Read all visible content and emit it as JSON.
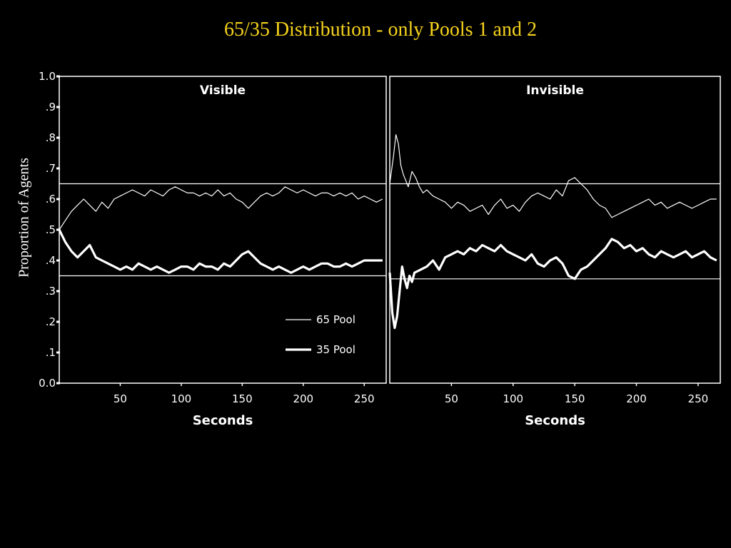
{
  "slide": {
    "title": "65/35 Distribution - only Pools 1 and 2",
    "ylabel": "Proportion of Agents"
  },
  "chart_data": [
    {
      "type": "line",
      "title": "Visible",
      "xlabel": "Seconds",
      "ylabel": "Proportion of Agents",
      "xlim": [
        0,
        268
      ],
      "ylim": [
        0,
        1
      ],
      "xticks": [
        50,
        100,
        150,
        200,
        250
      ],
      "yticks": [
        0,
        0.1,
        0.2,
        0.3,
        0.4,
        0.5,
        0.6,
        0.7,
        0.8,
        0.9,
        1.0
      ],
      "ytick_labels": [
        "0.0",
        ".1",
        ".2",
        ".3",
        ".4",
        ".5",
        ".6",
        ".7",
        ".8",
        ".9",
        "1.0"
      ],
      "reference_lines": [
        0.65,
        0.35
      ],
      "legend": {
        "placement": "lower-right",
        "entries": [
          "65 Pool",
          "35 Pool"
        ]
      },
      "series": [
        {
          "name": "65 Pool",
          "x": [
            0,
            5,
            10,
            15,
            20,
            25,
            30,
            35,
            40,
            45,
            50,
            55,
            60,
            65,
            70,
            75,
            80,
            85,
            90,
            95,
            100,
            105,
            110,
            115,
            120,
            125,
            130,
            135,
            140,
            145,
            150,
            155,
            160,
            165,
            170,
            175,
            180,
            185,
            190,
            195,
            200,
            205,
            210,
            215,
            220,
            225,
            230,
            235,
            240,
            245,
            250,
            255,
            260,
            265
          ],
          "y": [
            0.5,
            0.53,
            0.56,
            0.58,
            0.6,
            0.58,
            0.56,
            0.59,
            0.57,
            0.6,
            0.61,
            0.62,
            0.63,
            0.62,
            0.61,
            0.63,
            0.62,
            0.61,
            0.63,
            0.64,
            0.63,
            0.62,
            0.62,
            0.61,
            0.62,
            0.61,
            0.63,
            0.61,
            0.62,
            0.6,
            0.59,
            0.57,
            0.59,
            0.61,
            0.62,
            0.61,
            0.62,
            0.64,
            0.63,
            0.62,
            0.63,
            0.62,
            0.61,
            0.62,
            0.62,
            0.61,
            0.62,
            0.61,
            0.62,
            0.6,
            0.61,
            0.6,
            0.59,
            0.6
          ]
        },
        {
          "name": "35 Pool",
          "x": [
            0,
            5,
            10,
            15,
            20,
            25,
            30,
            35,
            40,
            45,
            50,
            55,
            60,
            65,
            70,
            75,
            80,
            85,
            90,
            95,
            100,
            105,
            110,
            115,
            120,
            125,
            130,
            135,
            140,
            145,
            150,
            155,
            160,
            165,
            170,
            175,
            180,
            185,
            190,
            195,
            200,
            205,
            210,
            215,
            220,
            225,
            230,
            235,
            240,
            245,
            250,
            255,
            260,
            265
          ],
          "y": [
            0.5,
            0.46,
            0.43,
            0.41,
            0.43,
            0.45,
            0.41,
            0.4,
            0.39,
            0.38,
            0.37,
            0.38,
            0.37,
            0.39,
            0.38,
            0.37,
            0.38,
            0.37,
            0.36,
            0.37,
            0.38,
            0.38,
            0.37,
            0.39,
            0.38,
            0.38,
            0.37,
            0.39,
            0.38,
            0.4,
            0.42,
            0.43,
            0.41,
            0.39,
            0.38,
            0.37,
            0.38,
            0.37,
            0.36,
            0.37,
            0.38,
            0.37,
            0.38,
            0.39,
            0.39,
            0.38,
            0.38,
            0.39,
            0.38,
            0.39,
            0.4,
            0.4,
            0.4,
            0.4
          ]
        }
      ]
    },
    {
      "type": "line",
      "title": "Invisible",
      "xlabel": "Seconds",
      "ylabel": "",
      "xlim": [
        0,
        268
      ],
      "ylim": [
        0,
        1
      ],
      "xticks": [
        50,
        100,
        150,
        200,
        250
      ],
      "yticks": [],
      "reference_lines": [
        0.65,
        0.34
      ],
      "series": [
        {
          "name": "65 Pool",
          "x": [
            0,
            3,
            5,
            7,
            9,
            11,
            13,
            15,
            18,
            21,
            24,
            27,
            30,
            35,
            40,
            45,
            50,
            55,
            60,
            65,
            70,
            75,
            80,
            85,
            90,
            95,
            100,
            105,
            110,
            115,
            120,
            125,
            130,
            135,
            140,
            145,
            150,
            155,
            160,
            165,
            170,
            175,
            180,
            185,
            190,
            195,
            200,
            205,
            210,
            215,
            220,
            225,
            230,
            235,
            240,
            245,
            250,
            255,
            260,
            265
          ],
          "y": [
            0.65,
            0.74,
            0.81,
            0.78,
            0.71,
            0.68,
            0.66,
            0.64,
            0.69,
            0.67,
            0.64,
            0.62,
            0.63,
            0.61,
            0.6,
            0.59,
            0.57,
            0.59,
            0.58,
            0.56,
            0.57,
            0.58,
            0.55,
            0.58,
            0.6,
            0.57,
            0.58,
            0.56,
            0.59,
            0.61,
            0.62,
            0.61,
            0.6,
            0.63,
            0.61,
            0.66,
            0.67,
            0.65,
            0.63,
            0.6,
            0.58,
            0.57,
            0.54,
            0.55,
            0.56,
            0.57,
            0.58,
            0.59,
            0.6,
            0.58,
            0.59,
            0.57,
            0.58,
            0.59,
            0.58,
            0.57,
            0.58,
            0.59,
            0.6,
            0.6
          ]
        },
        {
          "name": "35 Pool",
          "x": [
            0,
            2,
            4,
            6,
            8,
            10,
            12,
            14,
            16,
            18,
            20,
            25,
            30,
            35,
            40,
            45,
            50,
            55,
            60,
            65,
            70,
            75,
            80,
            85,
            90,
            95,
            100,
            105,
            110,
            115,
            120,
            125,
            130,
            135,
            140,
            145,
            150,
            155,
            160,
            165,
            170,
            175,
            180,
            185,
            190,
            195,
            200,
            205,
            210,
            215,
            220,
            225,
            230,
            235,
            240,
            245,
            250,
            255,
            260,
            265
          ],
          "y": [
            0.36,
            0.23,
            0.18,
            0.22,
            0.3,
            0.38,
            0.34,
            0.31,
            0.35,
            0.33,
            0.36,
            0.37,
            0.38,
            0.4,
            0.37,
            0.41,
            0.42,
            0.43,
            0.42,
            0.44,
            0.43,
            0.45,
            0.44,
            0.43,
            0.45,
            0.43,
            0.42,
            0.41,
            0.4,
            0.42,
            0.39,
            0.38,
            0.4,
            0.41,
            0.39,
            0.35,
            0.34,
            0.37,
            0.38,
            0.4,
            0.42,
            0.44,
            0.47,
            0.46,
            0.44,
            0.45,
            0.43,
            0.44,
            0.42,
            0.41,
            0.43,
            0.42,
            0.41,
            0.42,
            0.43,
            0.41,
            0.42,
            0.43,
            0.41,
            0.4
          ]
        }
      ]
    }
  ]
}
